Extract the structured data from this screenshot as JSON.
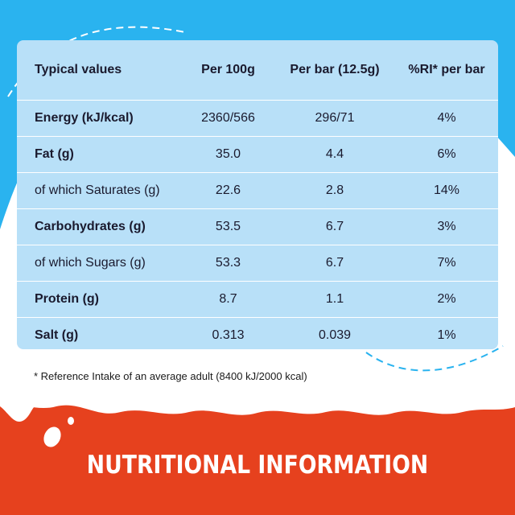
{
  "colors": {
    "sky_blue": "#2ab3ef",
    "table_blue": "#b8e0f8",
    "banner_red": "#e6411e",
    "milk_white": "#ffffff",
    "text_dark": "#1a1a2e"
  },
  "table": {
    "headers": [
      "Typical values",
      "Per 100g",
      "Per bar (12.5g)",
      "%RI* per bar"
    ],
    "rows": [
      {
        "label": "Energy (kJ/kcal)",
        "per100": "2360/566",
        "perbar": "296/71",
        "ri": "4%"
      },
      {
        "label": "Fat (g)",
        "per100": "35.0",
        "perbar": "4.4",
        "ri": "6%"
      },
      {
        "label": "of which Saturates (g)",
        "per100": "22.6",
        "perbar": "2.8",
        "ri": "14%"
      },
      {
        "label": "Carbohydrates (g)",
        "per100": "53.5",
        "perbar": "6.7",
        "ri": "3%"
      },
      {
        "label": "of which Sugars (g)",
        "per100": "53.3",
        "perbar": "6.7",
        "ri": "7%"
      },
      {
        "label": "Protein (g)",
        "per100": "8.7",
        "perbar": "1.1",
        "ri": "2%"
      },
      {
        "label": "Salt (g)",
        "per100": "0.313",
        "perbar": "0.039",
        "ri": "1%"
      }
    ]
  },
  "footnote": "* Reference Intake of an average adult (8400 kJ/2000 kcal)",
  "banner": {
    "title": "NUTRITIONAL INFORMATION"
  }
}
